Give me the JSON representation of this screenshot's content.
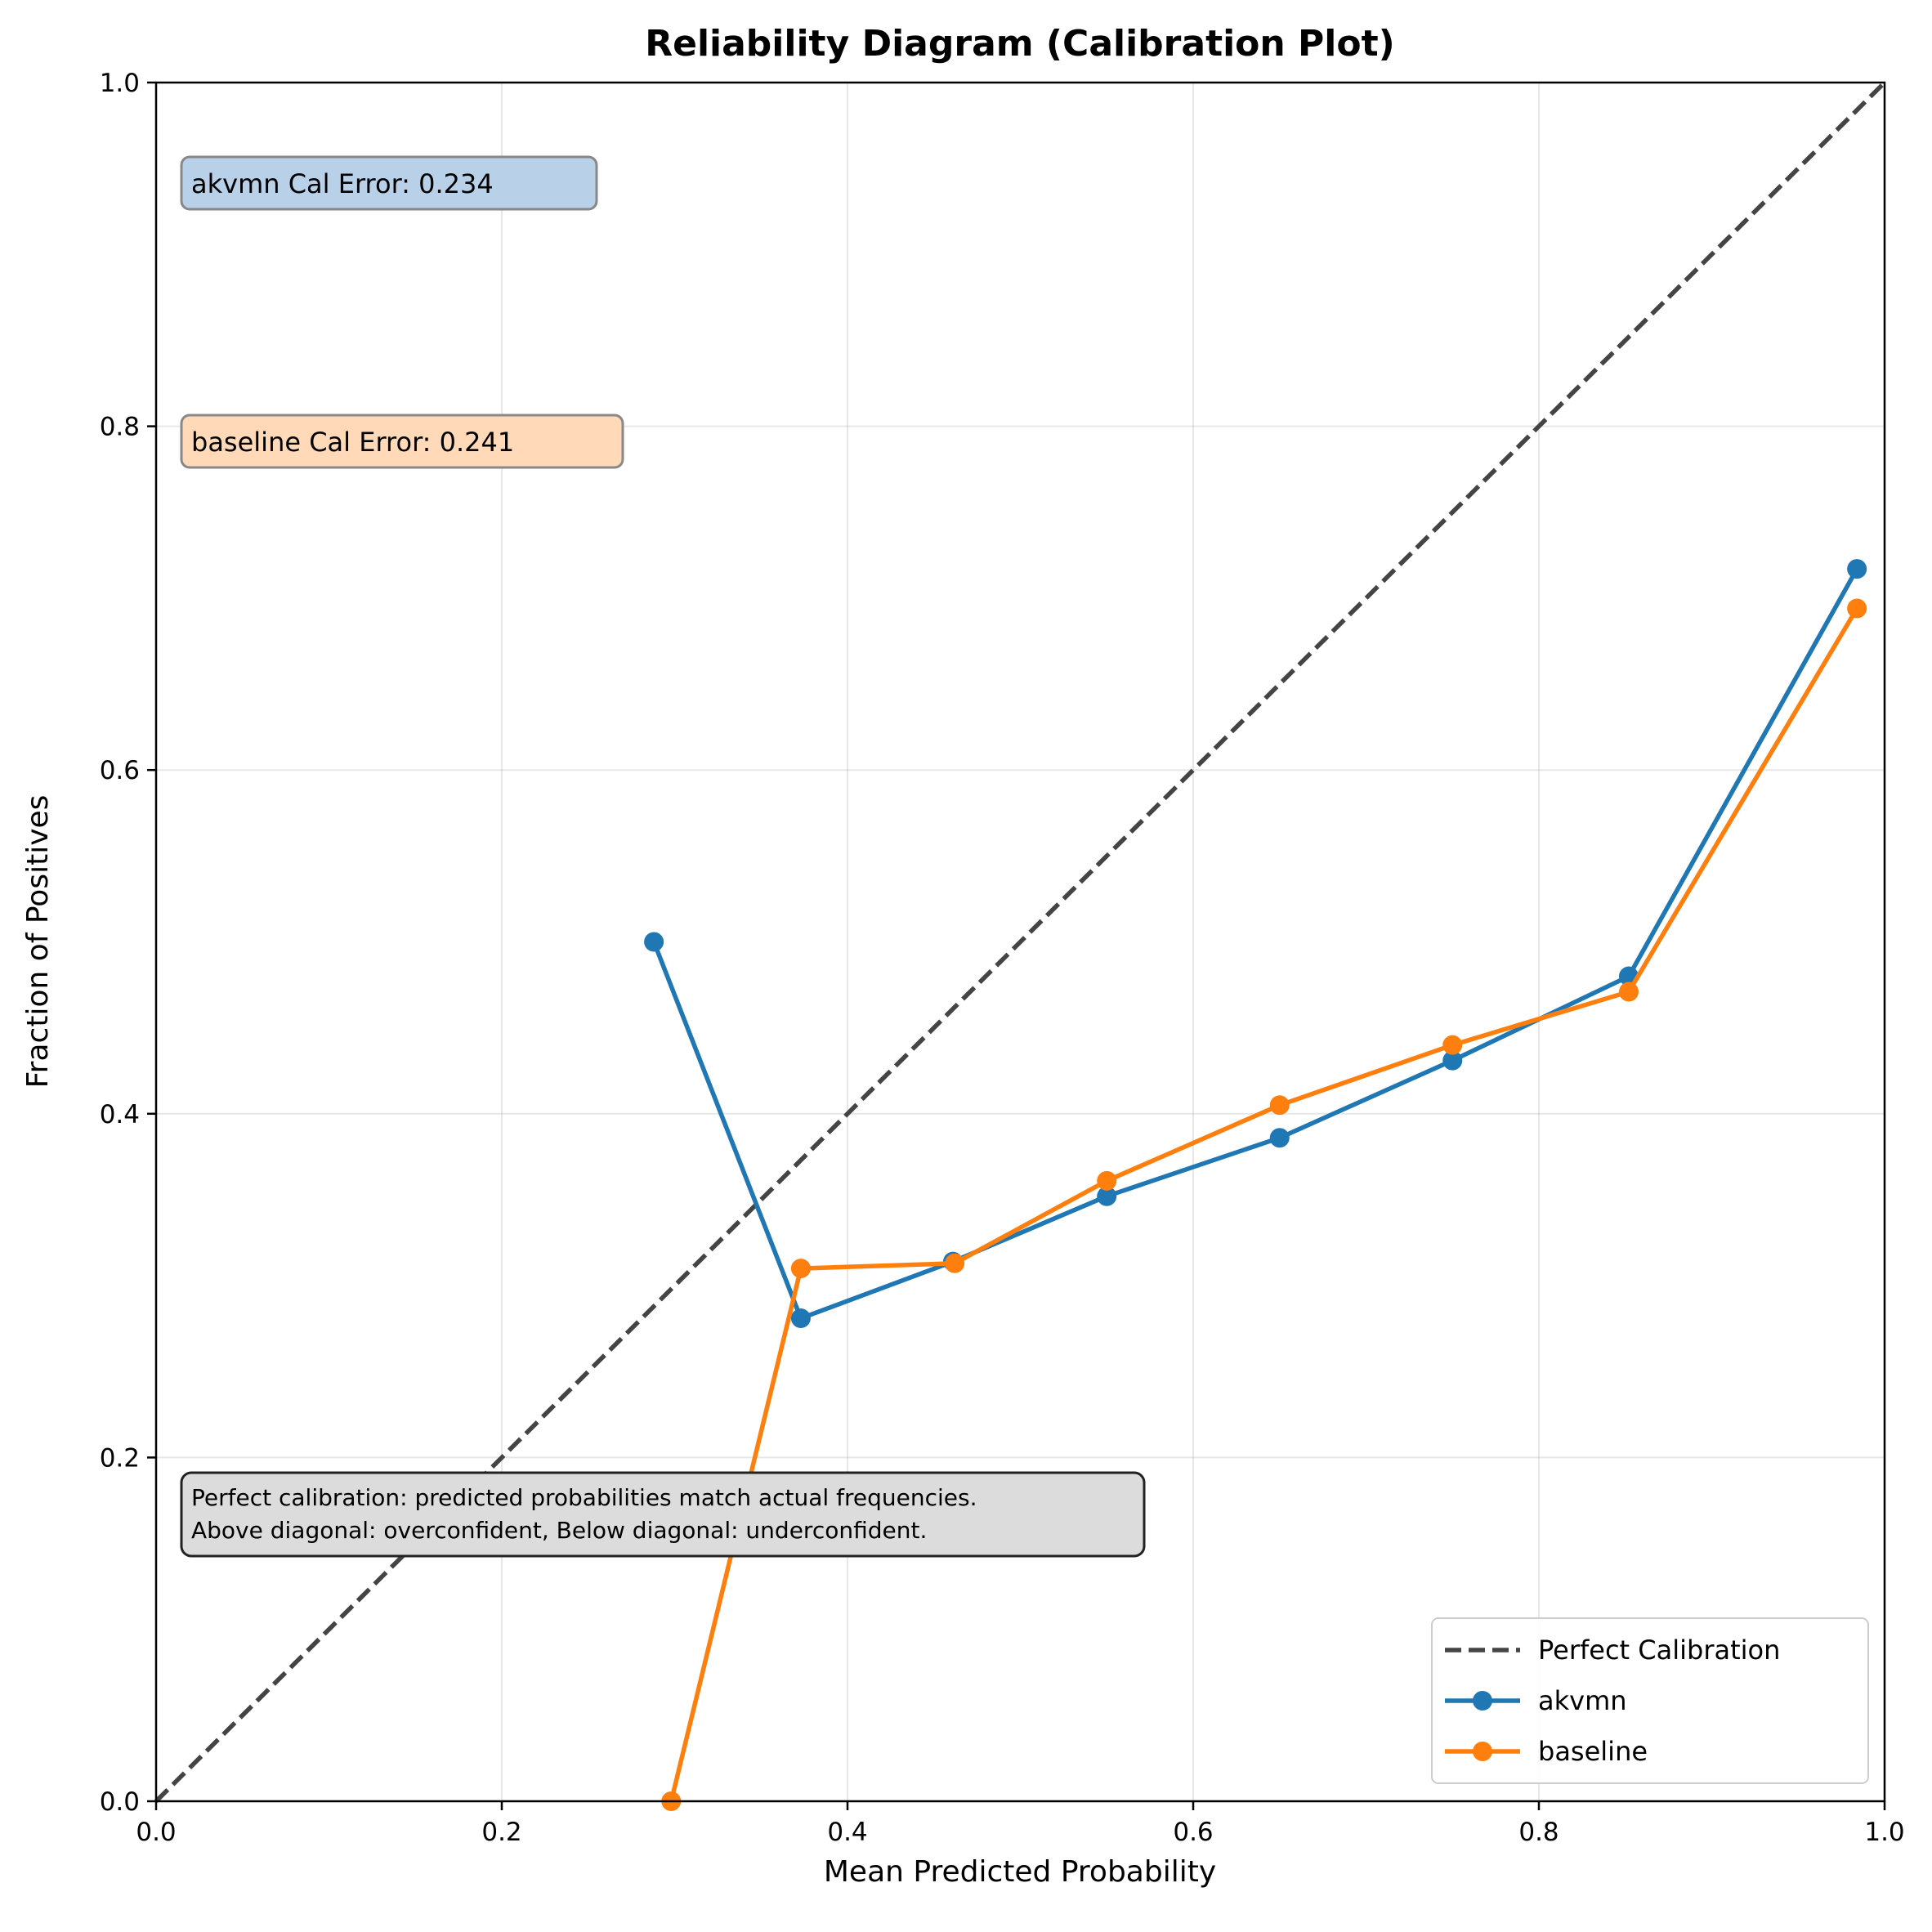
{
  "chart_data": {
    "type": "line",
    "title": "Reliability Diagram (Calibration Plot)",
    "xlabel": "Mean Predicted Probability",
    "ylabel": "Fraction of Positives",
    "xlim": [
      0.0,
      1.0
    ],
    "ylim": [
      0.0,
      1.0
    ],
    "xticks": [
      "0.0",
      "0.2",
      "0.4",
      "0.6",
      "0.8",
      "1.0"
    ],
    "yticks": [
      "0.0",
      "0.2",
      "0.4",
      "0.6",
      "0.8",
      "1.0"
    ],
    "grid": true,
    "legend_position": "lower-right",
    "reference_line": {
      "name": "Perfect Calibration",
      "x": [
        0.0,
        1.0
      ],
      "y": [
        0.0,
        1.0
      ],
      "color": "#444444",
      "style": "dashed"
    },
    "series": [
      {
        "name": "akvmn",
        "color": "#1f77b4",
        "x": [
          0.288,
          0.373,
          0.461,
          0.55,
          0.65,
          0.75,
          0.852,
          0.984
        ],
        "y": [
          0.5,
          0.281,
          0.314,
          0.352,
          0.386,
          0.431,
          0.48,
          0.717
        ]
      },
      {
        "name": "baseline",
        "color": "#ff7f0e",
        "x": [
          0.298,
          0.373,
          0.462,
          0.55,
          0.65,
          0.75,
          0.852,
          0.984
        ],
        "y": [
          0.0,
          0.31,
          0.313,
          0.361,
          0.405,
          0.44,
          0.471,
          0.694
        ]
      }
    ],
    "annotations": [
      {
        "text": "akvmn Cal Error: 0.234",
        "color": "#b8d0e8"
      },
      {
        "text": "baseline Cal Error: 0.241",
        "color": "#ffd9b8"
      }
    ],
    "note": {
      "lines": [
        "Perfect calibration: predicted probabilities match actual frequencies.",
        "Above diagonal: overconfident, Below diagonal: underconfident."
      ],
      "color": "#dcdcdc"
    }
  }
}
